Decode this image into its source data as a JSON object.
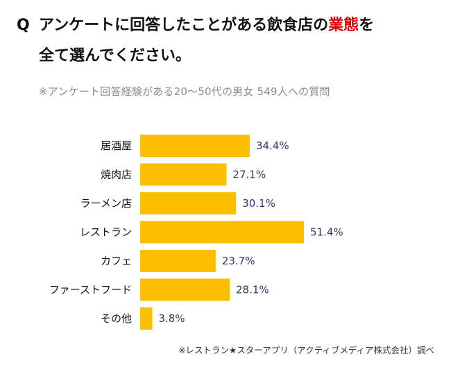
{
  "question": {
    "mark": "Q",
    "line1_before": "アンケートに回答したことがある飲食店の",
    "line1_highlight": "業態",
    "line1_after": "を",
    "line2": "全て選んでください。"
  },
  "subtitle": "※アンケート回答経験がある20～50代の男女 549人への質問",
  "footnote": "※レストラン★スターアプリ（アクティブメディア株式会社）調べ",
  "colors": {
    "bar": "#fbbf00",
    "value_text": "#2e3b62",
    "highlight": "#e00000"
  },
  "chart_data": {
    "type": "bar",
    "orientation": "horizontal",
    "categories": [
      "居酒屋",
      "焼肉店",
      "ラーメン店",
      "レストラン",
      "カフェ",
      "ファーストフード",
      "その他"
    ],
    "values": [
      34.4,
      27.1,
      30.1,
      51.4,
      23.7,
      28.1,
      3.8
    ],
    "value_labels": [
      "34.4%",
      "27.1%",
      "30.1%",
      "51.4%",
      "23.7%",
      "28.1%",
      "3.8%"
    ],
    "unit": "%",
    "xlim": [
      0,
      51.4
    ],
    "grid": false,
    "legend": "none"
  }
}
